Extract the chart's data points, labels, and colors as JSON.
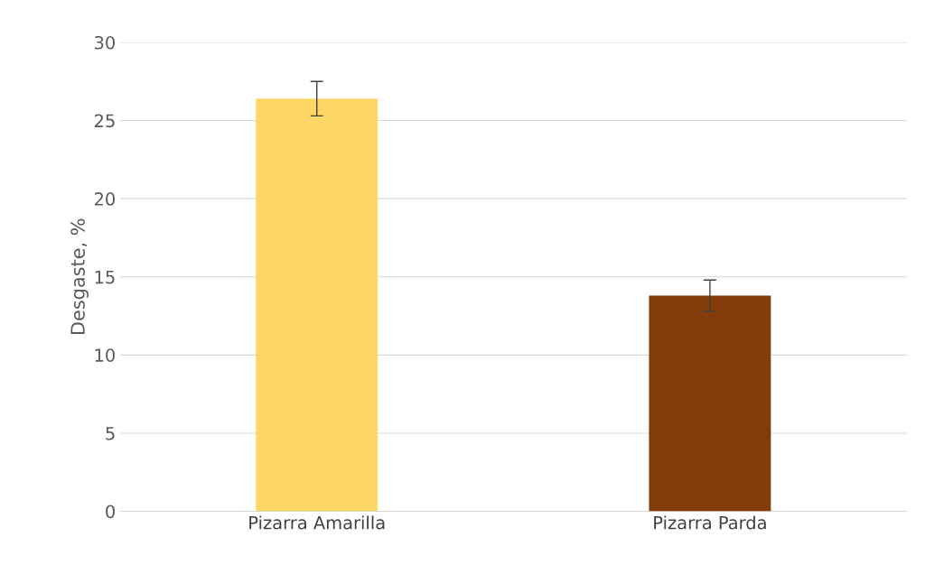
{
  "chart_data": {
    "type": "bar",
    "ylabel": "Desgaste, %",
    "categories": [
      "Pizarra Amarilla",
      "Pizarra Parda"
    ],
    "values": [
      26.4,
      13.8
    ],
    "colors": [
      "#fcd766",
      "#843c0c"
    ],
    "errors": [
      1.1,
      1.0
    ],
    "ylim": [
      0,
      30
    ],
    "yticks": [
      0,
      5,
      10,
      15,
      20,
      25,
      30
    ],
    "grid": "y",
    "legend": false
  }
}
